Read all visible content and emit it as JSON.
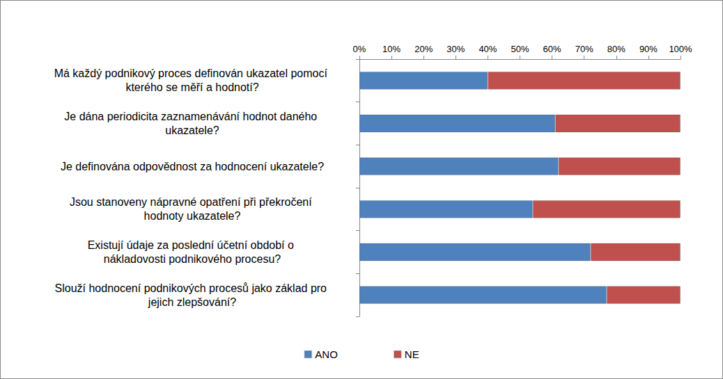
{
  "chart_data": {
    "type": "bar",
    "orientation": "horizontal",
    "stacked": true,
    "categories": [
      "Má každý podnikový proces definován ukazatel pomocí kterého se měří a hodnotí?",
      "Je dána periodicita zaznamenávání hodnot daného ukazatele?",
      "Je definována odpovědnost za hodnocení ukazatele?",
      "Jsou stanoveny nápravné opatření při překročení hodnoty ukazatele?",
      "Existují údaje za poslední účetní období o nákladovosti podnikového procesu?",
      "Slouží hodnocení podnikových procesů jako základ pro jejich zlepšování?"
    ],
    "series": [
      {
        "name": "ANO",
        "color": "#4f81bd",
        "values": [
          40,
          61,
          62,
          54,
          72,
          77
        ]
      },
      {
        "name": "NE",
        "color": "#c0504d",
        "values": [
          60,
          39,
          38,
          46,
          28,
          23
        ]
      }
    ],
    "xlim": [
      0,
      100
    ],
    "xticks": [
      {
        "value": 0,
        "label": "0%"
      },
      {
        "value": 10,
        "label": "10%"
      },
      {
        "value": 20,
        "label": "20%"
      },
      {
        "value": 30,
        "label": "30%"
      },
      {
        "value": 40,
        "label": "40%"
      },
      {
        "value": 50,
        "label": "50%"
      },
      {
        "value": 60,
        "label": "60%"
      },
      {
        "value": 70,
        "label": "70%"
      },
      {
        "value": 80,
        "label": "80%"
      },
      {
        "value": 90,
        "label": "90%"
      },
      {
        "value": 100,
        "label": "100%"
      }
    ],
    "grid": false,
    "legend": "bottom"
  }
}
